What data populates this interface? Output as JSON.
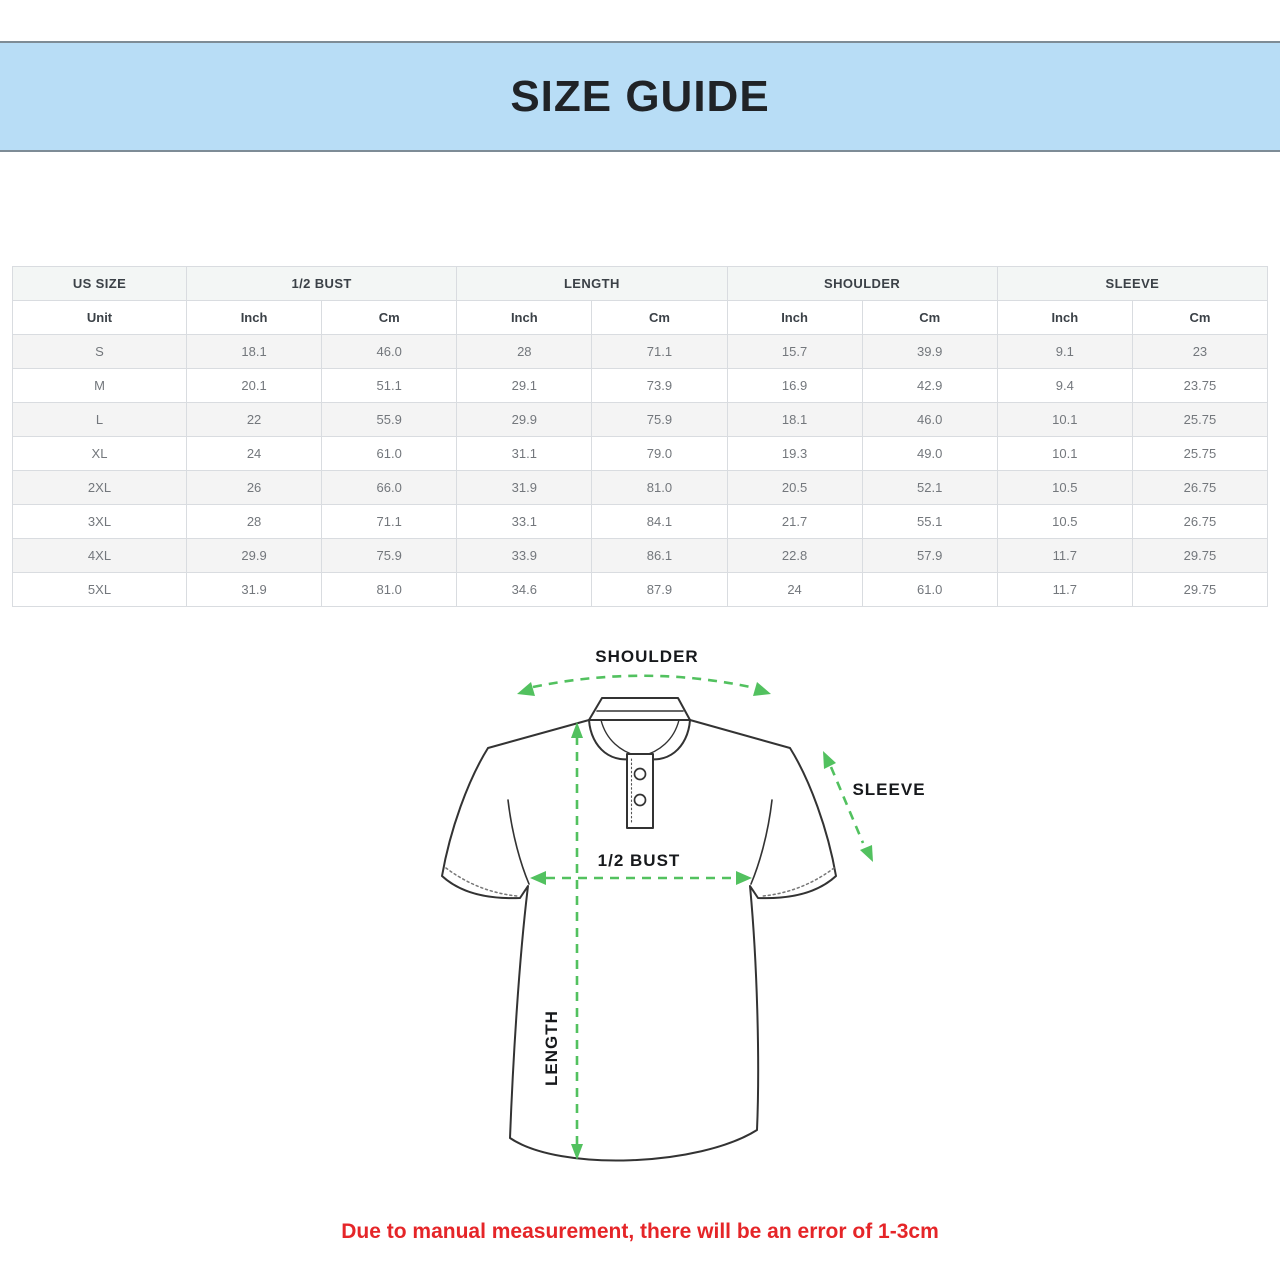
{
  "banner": {
    "title": "SIZE GUIDE"
  },
  "table": {
    "group_headers": [
      "US SIZE",
      "1/2 BUST",
      "LENGTH",
      "SHOULDER",
      "SLEEVE"
    ],
    "unit_row": [
      "Unit",
      "Inch",
      "Cm",
      "Inch",
      "Cm",
      "Inch",
      "Cm",
      "Inch",
      "Cm"
    ],
    "rows": [
      {
        "size": "S",
        "cells": [
          "18.1",
          "46.0",
          "28",
          "71.1",
          "15.7",
          "39.9",
          "9.1",
          "23"
        ]
      },
      {
        "size": "M",
        "cells": [
          "20.1",
          "51.1",
          "29.1",
          "73.9",
          "16.9",
          "42.9",
          "9.4",
          "23.75"
        ]
      },
      {
        "size": "L",
        "cells": [
          "22",
          "55.9",
          "29.9",
          "75.9",
          "18.1",
          "46.0",
          "10.1",
          "25.75"
        ]
      },
      {
        "size": "XL",
        "cells": [
          "24",
          "61.0",
          "31.1",
          "79.0",
          "19.3",
          "49.0",
          "10.1",
          "25.75"
        ]
      },
      {
        "size": "2XL",
        "cells": [
          "26",
          "66.0",
          "31.9",
          "81.0",
          "20.5",
          "52.1",
          "10.5",
          "26.75"
        ]
      },
      {
        "size": "3XL",
        "cells": [
          "28",
          "71.1",
          "33.1",
          "84.1",
          "21.7",
          "55.1",
          "10.5",
          "26.75"
        ]
      },
      {
        "size": "4XL",
        "cells": [
          "29.9",
          "75.9",
          "33.9",
          "86.1",
          "22.8",
          "57.9",
          "11.7",
          "29.75"
        ]
      },
      {
        "size": "5XL",
        "cells": [
          "31.9",
          "81.0",
          "34.6",
          "87.9",
          "24",
          "61.0",
          "11.7",
          "29.75"
        ]
      }
    ]
  },
  "diagram": {
    "labels": {
      "shoulder": "SHOULDER",
      "sleeve": "SLEEVE",
      "bust": "1/2 BUST",
      "length": "LENGTH"
    }
  },
  "note": {
    "text": "Due to manual measurement, there will be an error of 1-3cm"
  },
  "colors": {
    "banner_bg": "#b8ddf6",
    "banner_border": "#7e8c96",
    "arrow_green": "#52c15f",
    "note_red": "#e52528",
    "header_bg": "#f3f6f5",
    "row_alt_bg": "#f4f4f4",
    "table_border": "#d9dce0"
  }
}
